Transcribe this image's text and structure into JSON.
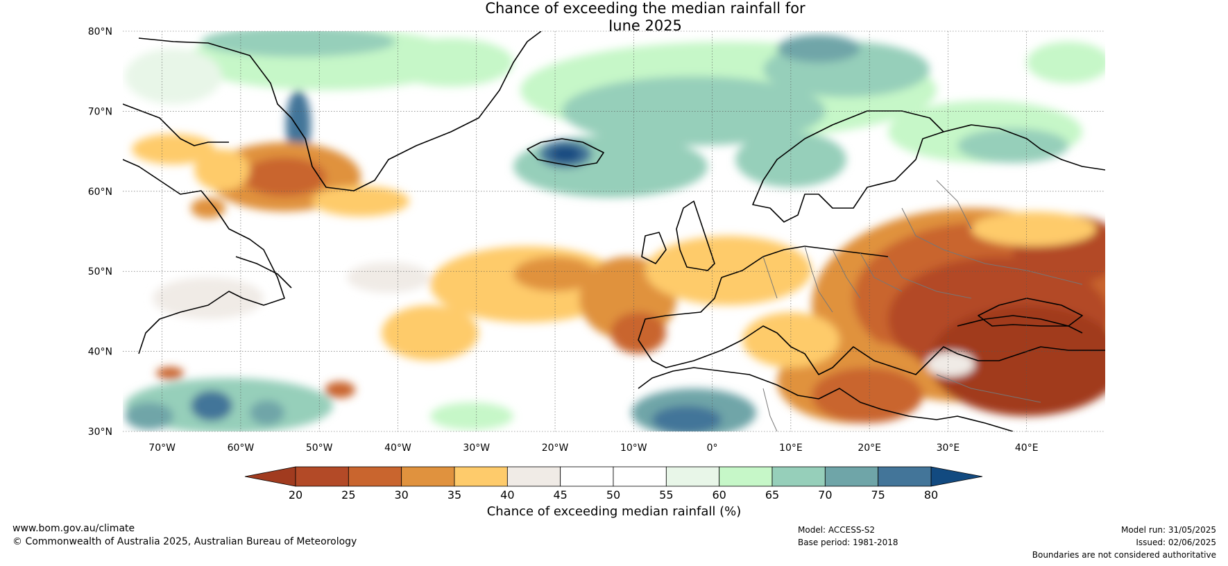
{
  "title": {
    "line1": "Chance of exceeding the median rainfall for",
    "line2": "June 2025"
  },
  "map": {
    "lat_range": [
      30,
      80
    ],
    "lon_range": [
      -75,
      50
    ],
    "lat_ticks": [
      {
        "value": 80,
        "label": "80°N"
      },
      {
        "value": 70,
        "label": "70°N"
      },
      {
        "value": 60,
        "label": "60°N"
      },
      {
        "value": 50,
        "label": "50°N"
      },
      {
        "value": 40,
        "label": "40°N"
      },
      {
        "value": 30,
        "label": "30°N"
      }
    ],
    "lon_ticks": [
      {
        "value": -70,
        "label": "70°W"
      },
      {
        "value": -60,
        "label": "60°W"
      },
      {
        "value": -50,
        "label": "50°W"
      },
      {
        "value": -40,
        "label": "40°W"
      },
      {
        "value": -30,
        "label": "30°W"
      },
      {
        "value": -20,
        "label": "20°W"
      },
      {
        "value": -10,
        "label": "10°W"
      },
      {
        "value": 0,
        "label": "0°"
      },
      {
        "value": 10,
        "label": "10°E"
      },
      {
        "value": 20,
        "label": "20°E"
      },
      {
        "value": 30,
        "label": "30°E"
      },
      {
        "value": 40,
        "label": "40°E"
      }
    ],
    "grid": true
  },
  "colorbar": {
    "label": "Chance of exceeding median rainfall (%)",
    "ticks": [
      "20",
      "25",
      "30",
      "35",
      "40",
      "45",
      "50",
      "55",
      "60",
      "65",
      "70",
      "75",
      "80"
    ],
    "colors": [
      "#a13b1f",
      "#b34a27",
      "#c9652e",
      "#e0923e",
      "#fecb6b",
      "#f0ebe6",
      "#ffffff",
      "#ffffff",
      "#e8f6e8",
      "#c6f7c8",
      "#96cfba",
      "#6fa5a8",
      "#437599",
      "#124a80"
    ],
    "under_color": "#a13b1f",
    "over_color": "#124a80"
  },
  "footer": {
    "website": "www.bom.gov.au/climate",
    "copyright": "© Commonwealth of Australia 2025, Australian Bureau of Meteorology",
    "model": "Model: ACCESS-S2",
    "base_period": "Base period: 1981-2018",
    "model_run": "Model run: 31/05/2025",
    "issued": "Issued: 02/06/2025",
    "disclaimer": "Boundaries are not considered authoritative"
  }
}
